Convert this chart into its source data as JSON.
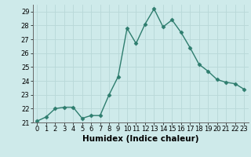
{
  "x": [
    0,
    1,
    2,
    3,
    4,
    5,
    6,
    7,
    8,
    9,
    10,
    11,
    12,
    13,
    14,
    15,
    16,
    17,
    18,
    19,
    20,
    21,
    22,
    23
  ],
  "y": [
    21.1,
    21.4,
    22.0,
    22.1,
    22.1,
    21.3,
    21.5,
    21.5,
    23.0,
    24.3,
    27.8,
    26.7,
    28.1,
    29.2,
    27.9,
    28.4,
    27.5,
    26.4,
    25.2,
    24.7,
    24.1,
    23.9,
    23.8,
    23.4
  ],
  "line_color": "#2e7d6e",
  "marker": "D",
  "markersize": 2.5,
  "linewidth": 1.0,
  "bg_color": "#ceeaea",
  "grid_color": "#b8d8d8",
  "xlabel": "Humidex (Indice chaleur)",
  "ylim": [
    21,
    29.5
  ],
  "xlim": [
    -0.5,
    23.5
  ],
  "yticks": [
    21,
    22,
    23,
    24,
    25,
    26,
    27,
    28,
    29
  ],
  "xticks": [
    0,
    1,
    2,
    3,
    4,
    5,
    6,
    7,
    8,
    9,
    10,
    11,
    12,
    13,
    14,
    15,
    16,
    17,
    18,
    19,
    20,
    21,
    22,
    23
  ],
  "tick_fontsize": 6,
  "label_fontsize": 7.5,
  "spine_color": "#666666"
}
